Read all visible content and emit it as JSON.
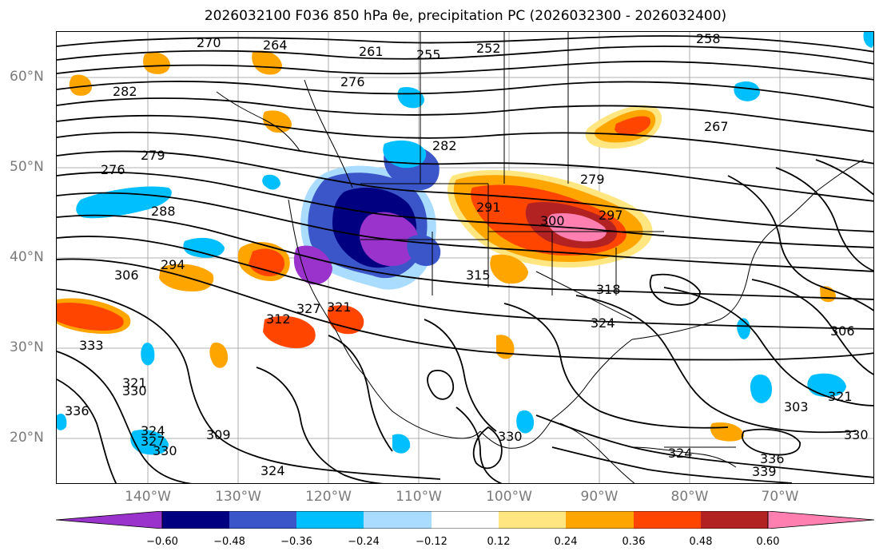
{
  "title": "2026032100 F036 850 hPa θe, precipitation PC (2026032300 - 2026032400)",
  "longitude_labels": [
    "140°W",
    "130°W",
    "120°W",
    "110°W",
    "100°W",
    "90°W",
    "80°W",
    "70°W"
  ],
  "latitude_labels": [
    "60°N",
    "50°N",
    "40°N",
    "30°N",
    "20°N"
  ],
  "colorbar": {
    "ticks": [
      "−0.60",
      "−0.48",
      "−0.36",
      "−0.24",
      "−0.12",
      "0.12",
      "0.24",
      "0.36",
      "0.48",
      "0.60"
    ],
    "colors": [
      "#9933cc",
      "#000080",
      "#3a56c9",
      "#00bfff",
      "#aadcff",
      "#ffffff",
      "#ffe680",
      "#ffa500",
      "#ff4500",
      "#b22222",
      "#ff80b0"
    ]
  },
  "contour_labels": [
    "270",
    "264",
    "261",
    "255",
    "252",
    "258",
    "282",
    "276",
    "267",
    "279",
    "276",
    "282",
    "288",
    "291",
    "300",
    "297",
    "279",
    "294",
    "306",
    "315",
    "318",
    "324",
    "312",
    "321",
    "333",
    "330",
    "336",
    "321",
    "306",
    "309",
    "324",
    "327",
    "330",
    "324",
    "330",
    "324",
    "336",
    "339",
    "303",
    "321",
    "330",
    "327"
  ],
  "shading_colors": {
    "purple": "#9933cc",
    "navy": "#000080",
    "blue": "#3a56c9",
    "cyan": "#00bfff",
    "lightblue": "#aadcff",
    "yellow": "#ffe680",
    "orange": "#ffa500",
    "redorange": "#ff4500",
    "darkred": "#b22222",
    "pink": "#ff80b0"
  }
}
